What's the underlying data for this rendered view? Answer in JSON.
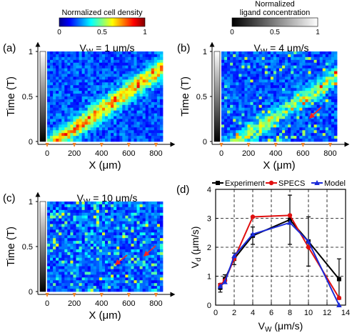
{
  "colorbars": {
    "density": {
      "label": "Normalized cell density",
      "ticks": [
        "0",
        "0.5",
        "1"
      ]
    },
    "ligand": {
      "label_line1": "Normalized",
      "label_line2": "ligand concentration",
      "ticks": [
        "0",
        "0.5",
        "1"
      ]
    }
  },
  "heatmaps": [
    {
      "panel_label": "(a)",
      "vw_value": "1",
      "stripe": "band"
    },
    {
      "panel_label": "(b)",
      "vw_value": "4",
      "stripe": "weak",
      "arrows": 1
    },
    {
      "panel_label": "(c)",
      "vw_value": "10",
      "stripe": "noise",
      "arrows": 2
    }
  ],
  "heatmap_axes": {
    "ylabel": "Time (T)",
    "xlabel": "X (μm)",
    "yticks": [
      "0",
      "0.5",
      "1"
    ],
    "xticks": [
      "0",
      "200",
      "400",
      "600",
      "800"
    ],
    "vw_prefix": "V",
    "vw_sub": "W",
    "vw_unit": "= {v} μm/s"
  },
  "chart_data": {
    "type": "line",
    "panel_label": "(d)",
    "xlabel_main": "V",
    "xlabel_sub": "W",
    "xlabel_unit": " (μm/s)",
    "ylabel_main": "V",
    "ylabel_sub": "d",
    "ylabel_unit": " (μm/s)",
    "xlim": [
      0,
      14
    ],
    "ylim": [
      0,
      4
    ],
    "xticks": [
      0,
      2,
      4,
      6,
      8,
      10,
      12,
      14
    ],
    "yticks": [
      0,
      1,
      2,
      3,
      4
    ],
    "grid": true,
    "legend_position": "top",
    "series": [
      {
        "name": "Experiment",
        "color": "#000000",
        "marker": "square",
        "x": [
          0.5,
          1,
          2,
          4,
          8,
          10,
          13.3
        ],
        "y": [
          0.6,
          0.9,
          1.6,
          2.4,
          2.95,
          2.2,
          0.9
        ],
        "err": [
          0.15,
          0.15,
          0.2,
          0.3,
          0.85,
          0.85,
          0.7
        ]
      },
      {
        "name": "SPECS",
        "color": "#e01010",
        "marker": "circle",
        "x": [
          0.5,
          1,
          2,
          4,
          8,
          10,
          13.3
        ],
        "y": [
          0.7,
          0.85,
          1.6,
          3.05,
          3.1,
          2.0,
          0.25
        ]
      },
      {
        "name": "Model",
        "color": "#1a2ad8",
        "marker": "triangle",
        "x": [
          0.5,
          1,
          2,
          4,
          8,
          10,
          13.3
        ],
        "y": [
          0.65,
          0.8,
          1.7,
          2.45,
          2.85,
          2.2,
          0.0
        ]
      }
    ]
  }
}
